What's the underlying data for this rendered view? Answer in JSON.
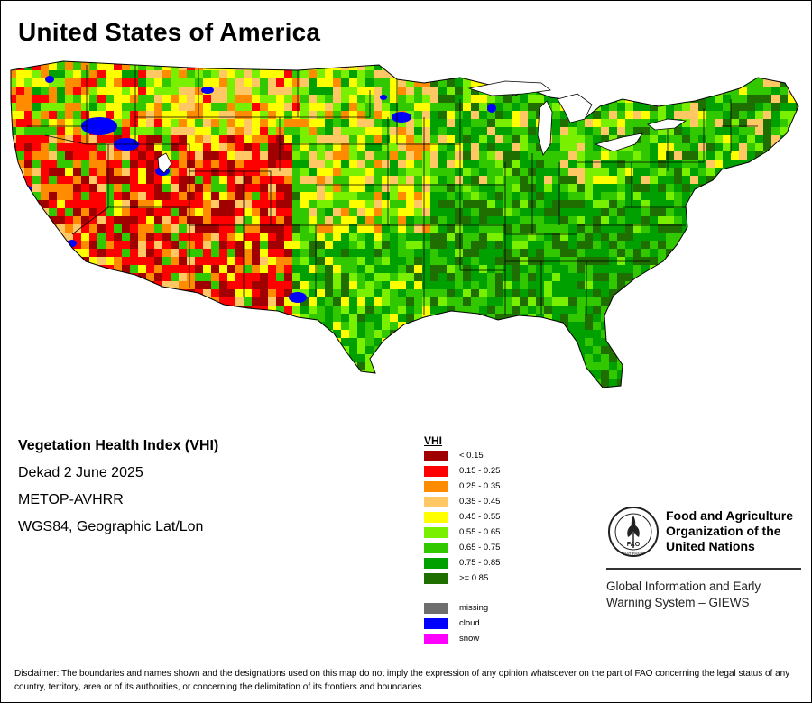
{
  "title": "United States of America",
  "info": {
    "index_name": "Vegetation Health Index (VHI)",
    "period": "Dekad 2 June 2025",
    "sensor": "METOP-AVHRR",
    "projection": "WGS84, Geographic Lat/Lon"
  },
  "legend": {
    "title": "VHI",
    "classes": [
      {
        "label": "< 0.15",
        "color": "#a00000"
      },
      {
        "label": "0.15 - 0.25",
        "color": "#ff0000"
      },
      {
        "label": "0.25 - 0.35",
        "color": "#ff8c00"
      },
      {
        "label": "0.35 - 0.45",
        "color": "#ffc864"
      },
      {
        "label": "0.45 - 0.55",
        "color": "#ffff00"
      },
      {
        "label": "0.55 - 0.65",
        "color": "#78f000"
      },
      {
        "label": "0.65 - 0.75",
        "color": "#32c800"
      },
      {
        "label": "0.75 - 0.85",
        "color": "#00a000"
      },
      {
        "label": ">= 0.85",
        "color": "#1e6e00"
      }
    ],
    "special": [
      {
        "label": "missing",
        "color": "#6e6e6e"
      },
      {
        "label": "cloud",
        "color": "#0000ff"
      },
      {
        "label": "snow",
        "color": "#ff00ff"
      }
    ]
  },
  "organization": {
    "name_line1": "Food and Agriculture",
    "name_line2": "Organization of the",
    "name_line3": "United Nations",
    "emblem_letters": "FAO",
    "emblem_motto": "FIAT PANIS",
    "system_line1": "Global Information and Early",
    "system_line2": "Warning System – GIEWS"
  },
  "disclaimer": "Disclaimer: The boundaries and names shown and the designations used on this map do not imply the expression of any opinion whatsoever on the part of FAO concerning the legal status of any country, territory, area or of its authorities, or concerning the delimitation of its frontiers and boundaries."
}
